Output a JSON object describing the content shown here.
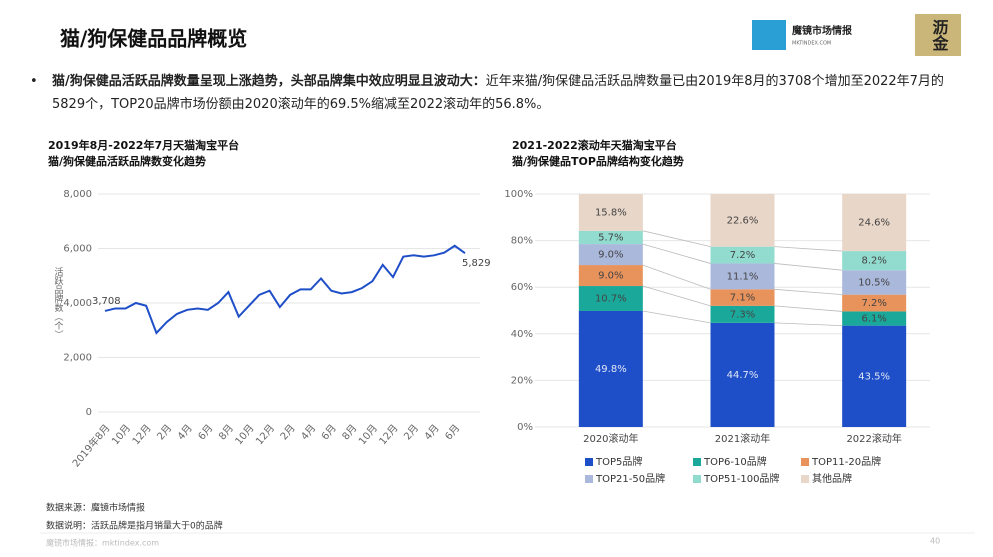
{
  "header": {
    "title": "猫/狗保健品品牌概览",
    "logo": "魔镜市场情报",
    "logo_sub": "MKTINDEX.COM",
    "badge": "沥金"
  },
  "bullet": {
    "lead": "猫/狗保健品活跃品牌数量呈现上涨趋势，头部品牌集中效应明显且波动大：",
    "text": "近年来猫/狗保健品活跃品牌数量已由2019年8月的3708个增加至2022年7月的5829个，TOP20品牌市场份额由2020滚动年的69.5%缩减至2022滚动年的56.8%。"
  },
  "chart_data": [
    {
      "type": "line",
      "title": "2019年8月-2022年7月天猫淘宝平台",
      "subtitle": "猫/狗保健品活跃品牌数变化趋势",
      "y_label": "活跃品牌数（个）",
      "categories": [
        "2019年8月",
        null,
        "10月",
        null,
        "12月",
        null,
        "2月",
        null,
        "4月",
        null,
        "6月",
        null,
        "8月",
        null,
        "10月",
        null,
        "12月",
        null,
        "2月",
        null,
        "4月",
        null,
        "6月",
        null,
        "8月",
        null,
        "10月",
        null,
        "12月",
        null,
        "2月",
        null,
        "4月",
        null,
        "6月",
        null
      ],
      "series": [
        {
          "name": "活跃品牌数",
          "color": "#1f4fc8",
          "values": [
            3708,
            3800,
            3800,
            4000,
            3900,
            2900,
            3300,
            3600,
            3750,
            3800,
            3750,
            4000,
            4400,
            3500,
            3900,
            4300,
            4450,
            3850,
            4300,
            4500,
            4500,
            4900,
            4450,
            4350,
            4400,
            4550,
            4800,
            5400,
            4950,
            5700,
            5750,
            5700,
            5750,
            5850,
            6100,
            5829
          ],
          "value_labels": [
            "3,708",
            null,
            null,
            null,
            null,
            null,
            null,
            null,
            null,
            null,
            null,
            null,
            null,
            null,
            null,
            null,
            null,
            null,
            null,
            null,
            null,
            null,
            null,
            null,
            null,
            null,
            null,
            null,
            null,
            null,
            null,
            null,
            null,
            null,
            null,
            "5,829"
          ]
        }
      ],
      "ylim": [
        0,
        8000
      ],
      "yticks": [
        0,
        {
          "value": 2000,
          "label": "2,000"
        },
        {
          "value": 4000,
          "label": "4,000"
        },
        {
          "value": 6000,
          "label": "6,000"
        },
        {
          "value": 8000,
          "label": "8,000"
        }
      ]
    },
    {
      "type": "stacked_bar",
      "title": "2021-2022滚动年天猫淘宝平台",
      "subtitle": "猫/狗保健品TOP品牌结构变化趋势",
      "categories": [
        "2020滚动年",
        "2021滚动年",
        "2022滚动年"
      ],
      "series": [
        {
          "name": "TOP5品牌",
          "color": "#1f4fc8",
          "values": [
            49.8,
            44.7,
            43.5
          ],
          "value_labels": [
            "49.8%",
            "44.7%",
            "43.5%"
          ]
        },
        {
          "name": "TOP6-10品牌",
          "color": "#1aa89a",
          "values": [
            10.7,
            7.3,
            6.1
          ],
          "value_labels": [
            "10.7%",
            "7.3%",
            "6.1%"
          ]
        },
        {
          "name": "TOP11-20品牌",
          "color": "#e8925c",
          "values": [
            9.0,
            7.1,
            7.2
          ],
          "value_labels": [
            "9.0%",
            "7.1%",
            "7.2%"
          ]
        },
        {
          "name": "TOP21-50品牌",
          "color": "#aab8dc",
          "values": [
            9.0,
            11.1,
            10.5
          ],
          "value_labels": [
            "9.0%",
            "11.1%",
            "10.5%"
          ]
        },
        {
          "name": "TOP51-100品牌",
          "color": "#92dccf",
          "values": [
            5.7,
            7.2,
            8.2
          ],
          "value_labels": [
            "5.7%",
            "7.2%",
            "8.2%"
          ]
        },
        {
          "name": "其他品牌",
          "color": "#e8d6c8",
          "values": [
            15.8,
            22.6,
            24.6
          ],
          "value_labels": [
            "15.8%",
            "22.6%",
            "24.6%"
          ]
        }
      ],
      "ylim": [
        0,
        100
      ],
      "yticks": [
        {
          "value": 0,
          "label": "0%"
        },
        {
          "value": 20,
          "label": "20%"
        },
        {
          "value": 40,
          "label": "40%"
        },
        {
          "value": 60,
          "label": "60%"
        },
        {
          "value": 80,
          "label": "80%"
        },
        {
          "value": 100,
          "label": "100%"
        }
      ]
    }
  ],
  "notes": {
    "source": "数据来源：魔镜市场情报",
    "definition": "数据说明：活跃品牌是指月销量大于0的品牌"
  },
  "footer": {
    "site": "魔镜市场情报：mktindex.com",
    "page": "40"
  }
}
